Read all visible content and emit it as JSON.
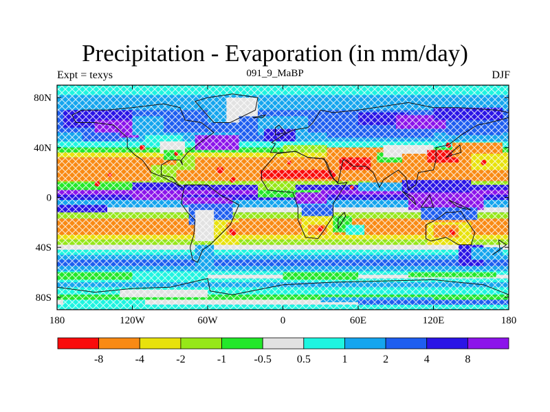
{
  "chart_data": {
    "type": "heatmap",
    "title": "Precipitation - Evaporation (in mm/day)",
    "subtitle_center": "091_9_MaBP",
    "subtitle_left": "Expt = texys",
    "subtitle_right": "DJF",
    "x_tick_labels": [
      "180",
      "120W",
      "60W",
      "0",
      "60E",
      "120E",
      "180"
    ],
    "x_tick_values": [
      -180,
      -120,
      -60,
      0,
      60,
      120,
      180
    ],
    "y_tick_labels": [
      "80N",
      "40N",
      "0",
      "40S",
      "80S"
    ],
    "y_tick_values": [
      80,
      40,
      0,
      -40,
      -80
    ],
    "xlim": [
      -180,
      180
    ],
    "ylim": [
      -90,
      90
    ],
    "colorbar": {
      "colors": [
        "#fa0c0c",
        "#f98a14",
        "#e8e20c",
        "#96e818",
        "#23e82a",
        "#e2e2e2",
        "#1ef5e0",
        "#15a5ee",
        "#1e5ef0",
        "#2a14e6",
        "#8c14ea"
      ],
      "labels": [
        "-8",
        "-4",
        "-2",
        "-1",
        "-0.5",
        "0.5",
        "1",
        "2",
        "4",
        "8"
      ]
    }
  }
}
